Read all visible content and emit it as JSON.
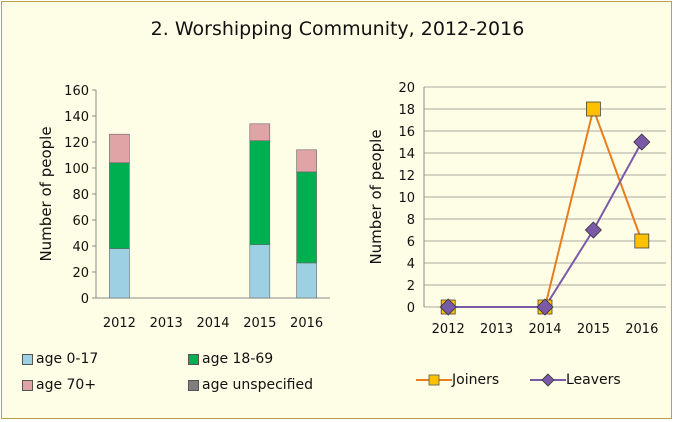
{
  "title": "2. Worshipping Community, 2012-2016",
  "chart_data": [
    {
      "type": "bar",
      "stacked": true,
      "categories": [
        "2012",
        "2013",
        "2014",
        "2015",
        "2016"
      ],
      "ylabel": "Number of people",
      "ylim": [
        0,
        160
      ],
      "yticks": [
        0,
        20,
        40,
        60,
        80,
        100,
        120,
        140,
        160
      ],
      "grid": false,
      "legend_position": "bottom",
      "series": [
        {
          "name": "age 0-17",
          "color": "#9dd0e2",
          "values": [
            38,
            0,
            0,
            41,
            27
          ]
        },
        {
          "name": "age 18-69",
          "color": "#00b050",
          "values": [
            66,
            0,
            0,
            80,
            70
          ]
        },
        {
          "name": "age 70+",
          "color": "#e0a3a6",
          "values": [
            22,
            0,
            0,
            13,
            17
          ]
        },
        {
          "name": "age unspecified",
          "color": "#7f7f7f",
          "values": [
            0,
            0,
            0,
            0,
            0
          ]
        }
      ]
    },
    {
      "type": "line",
      "categories": [
        "2012",
        "2013",
        "2014",
        "2015",
        "2016"
      ],
      "ylabel": "Number of people",
      "ylim": [
        0,
        20
      ],
      "yticks": [
        0,
        2,
        4,
        6,
        8,
        10,
        12,
        14,
        16,
        18,
        20
      ],
      "grid": true,
      "legend_position": "bottom",
      "series": [
        {
          "name": "Joiners",
          "color": "#e87d1e",
          "marker": "square",
          "marker_color": "#ffc000",
          "x": [
            "2012",
            "2014",
            "2015",
            "2016"
          ],
          "values": [
            0,
            0,
            18,
            6
          ]
        },
        {
          "name": "Leavers",
          "color": "#7a5aa6",
          "marker": "diamond",
          "marker_color": "#7a5aa6",
          "x": [
            "2012",
            "2014",
            "2015",
            "2016"
          ],
          "values": [
            0,
            0,
            7,
            15
          ]
        }
      ]
    }
  ]
}
